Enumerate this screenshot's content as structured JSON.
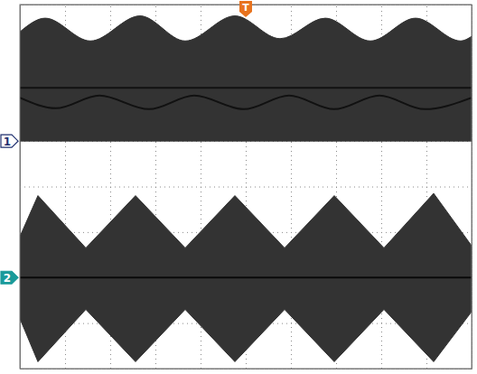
{
  "chart_data": {
    "type": "oscilloscope",
    "xlim": [
      0,
      10
    ],
    "ylim": [
      -4,
      4
    ],
    "xticks": [
      0,
      1,
      2,
      3,
      4,
      5,
      6,
      7,
      8,
      9,
      10
    ],
    "yticks": [
      -4,
      -3,
      -2,
      -1,
      0,
      1,
      2,
      3,
      4
    ],
    "grid": true,
    "tick_labels": false,
    "series": [
      {
        "type": "band",
        "color": "#333333",
        "x": [
          0,
          0.56,
          1.56,
          2.66,
          3.66,
          4.76,
          5.76,
          6.76,
          7.76,
          8.76,
          9.76,
          10
        ],
        "values": [
          3.4,
          3.7,
          3.2,
          3.75,
          3.2,
          3.75,
          3.25,
          3.7,
          3.2,
          3.7,
          3.2,
          3.3
        ],
        "lower": [
          1.0,
          1.0,
          1.0,
          1.0,
          1.0,
          1.0,
          1.0,
          1.0,
          1.0,
          1.0,
          1.0,
          1.0
        ]
      },
      {
        "type": "line",
        "color": "#111111",
        "x": [
          0,
          10
        ],
        "values": [
          2.17,
          2.17
        ]
      },
      {
        "type": "line",
        "color": "#111111",
        "x": [
          0,
          0.8,
          1.76,
          2.86,
          3.86,
          4.96,
          5.96,
          6.96,
          7.96,
          8.96,
          10
        ],
        "values": [
          1.95,
          1.72,
          2.0,
          1.7,
          2.0,
          1.7,
          2.0,
          1.7,
          2.0,
          1.7,
          1.95
        ]
      },
      {
        "type": "band",
        "color": "#333333",
        "x": [
          0,
          0.4,
          1.46,
          2.56,
          3.66,
          4.76,
          5.86,
          6.96,
          8.06,
          9.16,
          10
        ],
        "values": [
          -1.1,
          -0.2,
          -1.35,
          -0.2,
          -1.35,
          -0.2,
          -1.35,
          -0.2,
          -1.35,
          -0.15,
          -1.3
        ],
        "lower": [
          -2.9,
          -3.85,
          -2.7,
          -3.85,
          -2.7,
          -3.85,
          -2.7,
          -3.85,
          -2.7,
          -3.85,
          -2.75
        ]
      },
      {
        "type": "line",
        "color": "#0a0a0a",
        "x": [
          0,
          10
        ],
        "values": [
          -2,
          -2
        ]
      }
    ],
    "annotations": [
      {
        "text": "1",
        "y": 1.0,
        "color": "#1f2f6e"
      },
      {
        "text": "2",
        "y": -2,
        "color": "#1a9a9a"
      },
      {
        "text": "T",
        "x": 5,
        "color": "#e8731e"
      }
    ]
  }
}
